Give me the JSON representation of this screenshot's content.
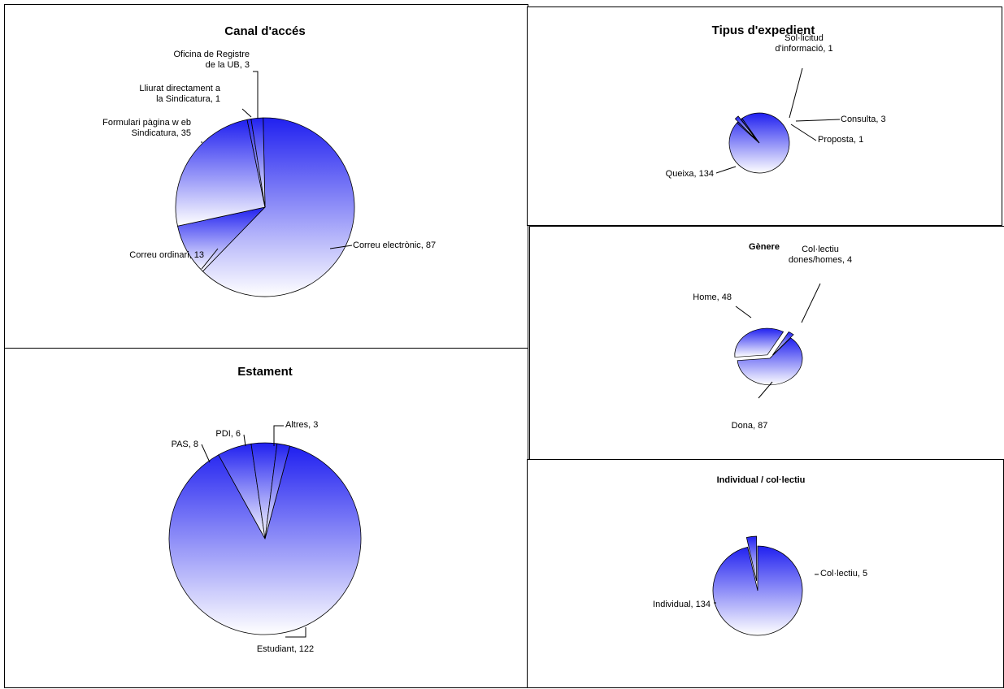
{
  "chart_data": [
    {
      "id": "canal",
      "type": "pie",
      "title": "Canal d'accés",
      "categories": [
        "Correu electrònic",
        "Correu ordinari",
        "Formulari pàgina web Sindicatura",
        "Lliurat directament a la Sindicatura",
        "Oficina de Registre de la UB"
      ],
      "values": [
        87,
        13,
        35,
        1,
        3
      ],
      "labels": [
        [
          "Correu electrònic, 87"
        ],
        [
          "Correu ordinari, 13"
        ],
        [
          "Formulari pàgina w eb",
          "Sindicatura, 35"
        ],
        [
          "Lliurat  directament a",
          "la Sindicatura, 1"
        ],
        [
          "Oficina de Registre",
          "de la UB, 3"
        ]
      ],
      "legend": "none"
    },
    {
      "id": "tipus",
      "type": "pie",
      "title": "Tipus d'expedient",
      "categories": [
        "Queixa",
        "Sol·licitud d'informació",
        "Consulta",
        "Proposta"
      ],
      "values": [
        134,
        1,
        3,
        1
      ],
      "labels": [
        [
          "Queixa, 134"
        ],
        [
          "Sol·licitud",
          "d'informació, 1"
        ],
        [
          "Consulta, 3"
        ],
        [
          "Proposta, 1"
        ]
      ],
      "legend": "none"
    },
    {
      "id": "genere",
      "type": "pie",
      "title": "Gènere",
      "categories": [
        "Dona",
        "Home",
        "Col·lectiu dones/homes"
      ],
      "values": [
        87,
        48,
        4
      ],
      "labels": [
        [
          "Dona, 87"
        ],
        [
          "Home, 48"
        ],
        [
          "Col·lectiu",
          "dones/homes, 4"
        ]
      ],
      "legend": "none"
    },
    {
      "id": "estament",
      "type": "pie",
      "title": "Estament",
      "categories": [
        "Estudiant",
        "PAS",
        "PDI",
        "Altres"
      ],
      "values": [
        122,
        8,
        6,
        3
      ],
      "labels": [
        [
          "Estudiant, 122"
        ],
        [
          "PAS, 8"
        ],
        [
          "PDI, 6"
        ],
        [
          "Altres, 3"
        ]
      ],
      "legend": "none"
    },
    {
      "id": "individual",
      "type": "pie",
      "title": "Individual / col·lectiu",
      "categories": [
        "Individual",
        "Col·lectiu"
      ],
      "values": [
        134,
        5
      ],
      "labels": [
        [
          "Individual, 134"
        ],
        [
          "Col·lectiu, 5"
        ]
      ],
      "legend": "none"
    }
  ],
  "colors": {
    "slice_top": "#2020f0",
    "slice_bottom": "#ffffff",
    "border": "#000000"
  }
}
